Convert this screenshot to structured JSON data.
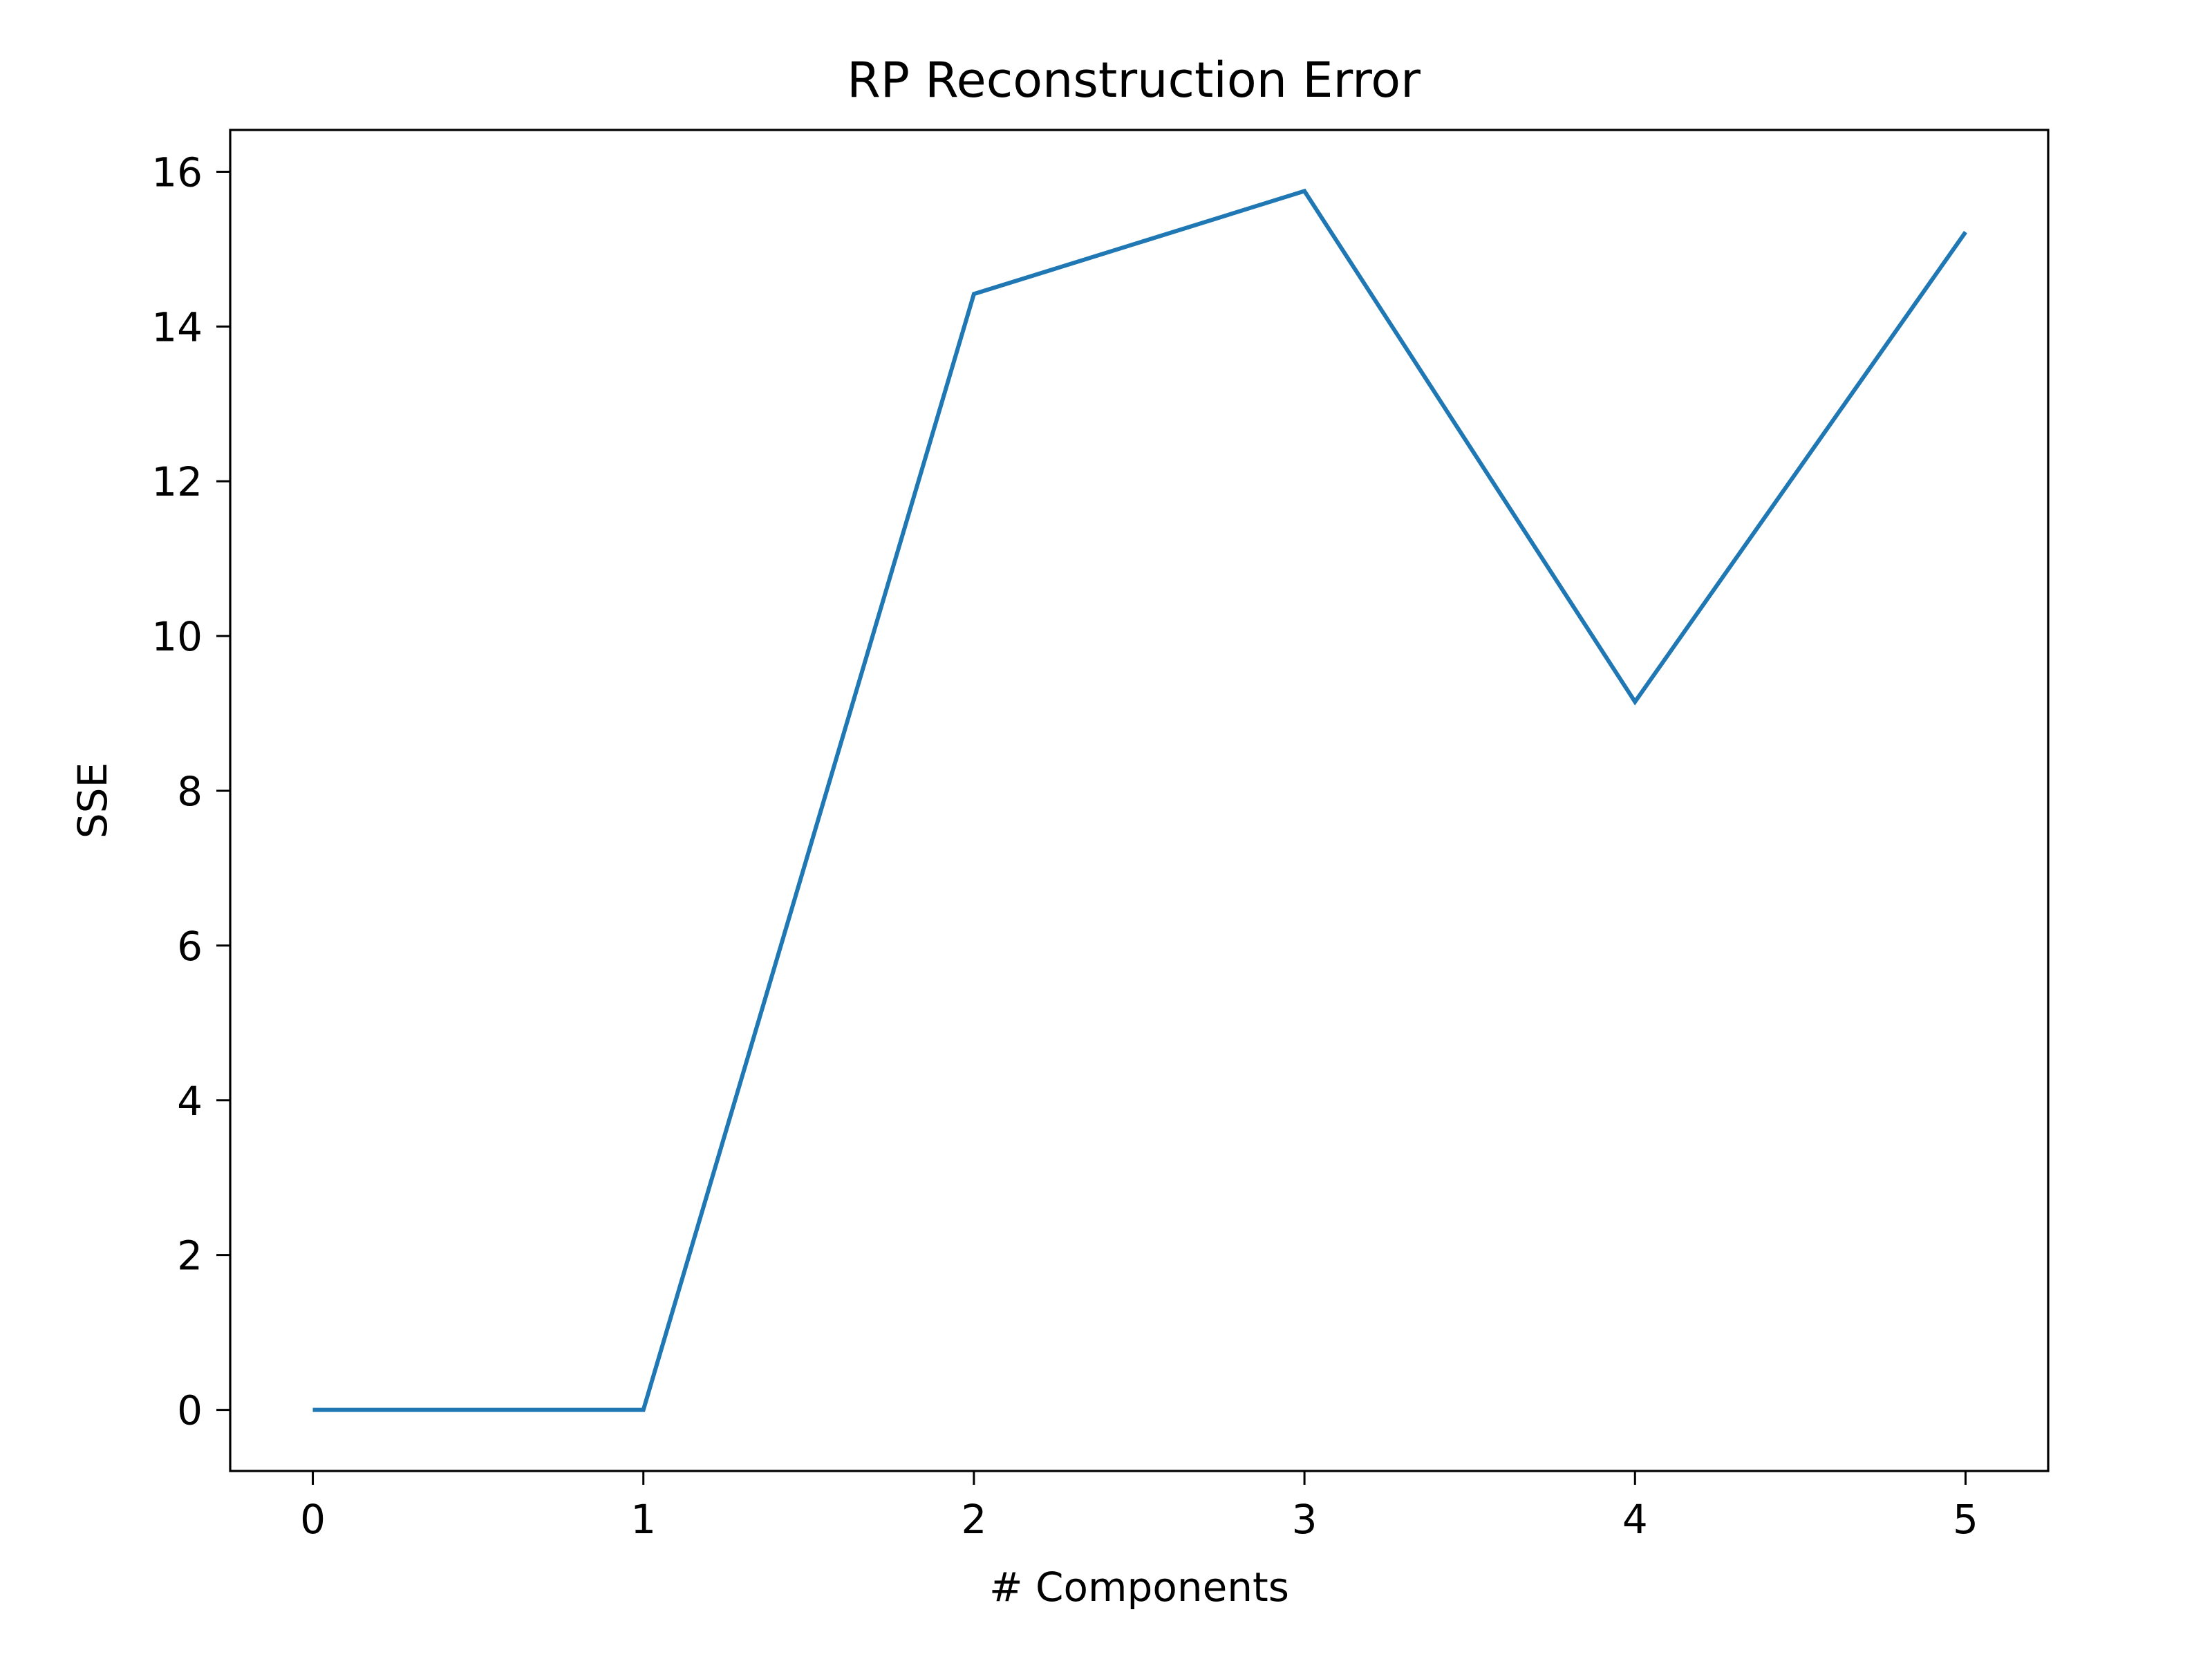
{
  "chart_data": {
    "type": "line",
    "title": "RP Reconstruction Error",
    "xlabel": "# Components",
    "ylabel": "SSE",
    "x": [
      0,
      1,
      2,
      3,
      4,
      5
    ],
    "series": [
      {
        "values": [
          0.0,
          0.0,
          14.42,
          15.75,
          9.15,
          15.22
        ],
        "color": "#1f77b4"
      }
    ],
    "xlim": [
      -0.25,
      5.25
    ],
    "ylim": [
      -0.79,
      16.54
    ],
    "xticks": [
      0,
      1,
      2,
      3,
      4,
      5
    ],
    "yticks": [
      0,
      2,
      4,
      6,
      8,
      10,
      12,
      14,
      16
    ],
    "grid": false,
    "legend": "none"
  }
}
